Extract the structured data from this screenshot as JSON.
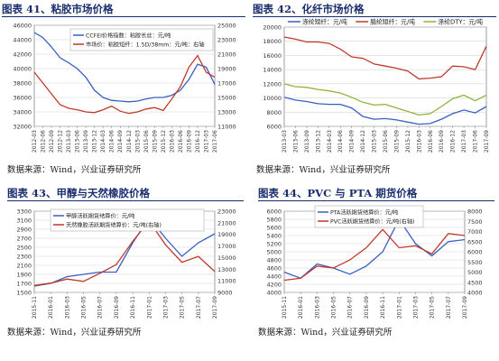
{
  "panels": [
    {
      "title": "图表 41、粘胶市场价格",
      "source": "数据来源：Wind，兴业证券研究所"
    },
    {
      "title": "图表 42、化纤市场价格",
      "source": "数据来源：Wind，兴业证券研究所"
    },
    {
      "title": "图表 43、甲醇与天然橡胶价格",
      "source": "数据来源：Wind，兴业证券研究所"
    },
    {
      "title": "图表 44、PVC 与 PTA 期货价格",
      "source": "数据来源：Wind，兴业证券研究所"
    }
  ],
  "chart_data": [
    {
      "type": "line",
      "ylim": [
        32000,
        46000
      ],
      "y2lim": [
        11000,
        25000
      ],
      "yticks": [
        32000,
        34000,
        36000,
        38000,
        40000,
        42000,
        44000,
        46000
      ],
      "y2ticks": [
        11000,
        13000,
        15000,
        17000,
        19000,
        21000,
        23000,
        25000
      ],
      "categories": [
        "2012-03",
        "2012-06",
        "2012-09",
        "2012-12",
        "2013-03",
        "2013-06",
        "2013-09",
        "2013-12",
        "2014-03",
        "2014-06",
        "2014-09",
        "2014-12",
        "2015-03",
        "2015-06",
        "2015-09",
        "2015-12",
        "2016-03",
        "2016-06",
        "2016-09",
        "2016-12",
        "2017-03",
        "2017-06"
      ],
      "series": [
        {
          "name": "CCFEI价格指数：粘胶长丝：元/吨",
          "axis": "left",
          "color": "#3b5fc0",
          "values": [
            45000,
            44300,
            43000,
            41500,
            40800,
            40000,
            38800,
            37000,
            36000,
            35600,
            35500,
            35400,
            35500,
            35800,
            36000,
            36000,
            36300,
            37000,
            38500,
            40600,
            40200,
            37800
          ]
        },
        {
          "name": "市场价：粘胶短纤：1.5D/38mm：元/吨：右轴",
          "axis": "right",
          "color": "#c0392b",
          "values": [
            18500,
            17000,
            15500,
            14000,
            13500,
            13300,
            13000,
            12900,
            13300,
            13800,
            13100,
            12800,
            13000,
            13400,
            13600,
            13200,
            14800,
            16500,
            19200,
            20800,
            18500,
            17800
          ]
        }
      ]
    },
    {
      "type": "line",
      "ylim": [
        6000,
        20000
      ],
      "yticks": [
        6000,
        8000,
        10000,
        12000,
        14000,
        16000,
        18000,
        20000
      ],
      "categories": [
        "2013-03",
        "2013-06",
        "2013-09",
        "2013-12",
        "2014-03",
        "2014-06",
        "2014-09",
        "2014-12",
        "2015-03",
        "2015-06",
        "2015-09",
        "2015-12",
        "2016-03",
        "2016-06",
        "2016-09",
        "2016-12",
        "2017-03",
        "2017-06",
        "2017-09"
      ],
      "series": [
        {
          "name": "涤纶短纤：元/吨",
          "color": "#3b5fc0",
          "values": [
            10100,
            9700,
            9500,
            9200,
            9100,
            9100,
            8600,
            7400,
            7000,
            7100,
            6900,
            6600,
            6300,
            6400,
            7000,
            7800,
            8300,
            7900,
            8800
          ]
        },
        {
          "name": "腈纶短纤：元/吨",
          "color": "#c0392b",
          "values": [
            18600,
            18300,
            17900,
            17900,
            17700,
            16900,
            15800,
            15600,
            14800,
            14500,
            14200,
            13800,
            12700,
            12800,
            13000,
            14500,
            14400,
            14000,
            17300
          ]
        },
        {
          "name": "涤纶DTY：元/吨",
          "color": "#8fb33a",
          "values": [
            12000,
            11600,
            11500,
            11200,
            11000,
            10700,
            10100,
            9400,
            9000,
            9100,
            8600,
            8100,
            7600,
            7800,
            8800,
            9900,
            10400,
            9600,
            10400
          ]
        }
      ]
    },
    {
      "type": "line",
      "ylim": [
        1500,
        3300
      ],
      "y2lim": [
        9000,
        23000
      ],
      "yticks": [
        1500,
        1700,
        1900,
        2100,
        2300,
        2500,
        2700,
        2900,
        3100,
        3300
      ],
      "y2ticks": [
        9000,
        11000,
        13000,
        15000,
        17000,
        19000,
        21000,
        23000
      ],
      "categories": [
        "2015-11",
        "2016-01",
        "2016-03",
        "2016-05",
        "2016-07",
        "2016-09",
        "2016-11",
        "2017-01",
        "2017-03",
        "2017-05",
        "2017-07",
        "2017-09"
      ],
      "series": [
        {
          "name": "甲醇活跃期货结算价：元/吨",
          "axis": "left",
          "color": "#3b5fc0",
          "values": [
            1640,
            1700,
            1850,
            1900,
            1950,
            1950,
            2600,
            3150,
            2700,
            2300,
            2600,
            2800
          ]
        },
        {
          "name": "天然橡胶活跃期货结算价：元/吨(右轴)",
          "axis": "right",
          "color": "#c0392b",
          "values": [
            10200,
            10600,
            11300,
            10900,
            12300,
            13800,
            17800,
            21300,
            17200,
            14200,
            15200,
            12600
          ]
        }
      ]
    },
    {
      "type": "line",
      "ylim": [
        4000,
        6000
      ],
      "y2lim": [
        4000,
        8000
      ],
      "yticks": [
        4000,
        4200,
        4400,
        4600,
        4800,
        5000,
        5200,
        5400,
        5600,
        5800,
        6000
      ],
      "y2ticks": [
        4000,
        4500,
        5000,
        5500,
        6000,
        6500,
        7000,
        7500,
        8000
      ],
      "categories": [
        "2015-11",
        "2016-01",
        "2016-03",
        "2016-05",
        "2016-07",
        "2016-09",
        "2016-11",
        "2017-01",
        "2017-03",
        "2017-05",
        "2017-07",
        "2017-09"
      ],
      "series": [
        {
          "name": "PTA活跃期货结算价：元/吨",
          "axis": "left",
          "color": "#3b5fc0",
          "values": [
            4500,
            4350,
            4700,
            4600,
            4450,
            4650,
            5000,
            5800,
            5200,
            4900,
            5250,
            5300
          ]
        },
        {
          "name": "PVC活跃期货结算价：元/吨(右轴)",
          "axis": "right",
          "color": "#c0392b",
          "values": [
            4600,
            4700,
            5300,
            5200,
            5600,
            6200,
            7100,
            6200,
            6300,
            5900,
            6900,
            6800
          ]
        }
      ]
    }
  ]
}
